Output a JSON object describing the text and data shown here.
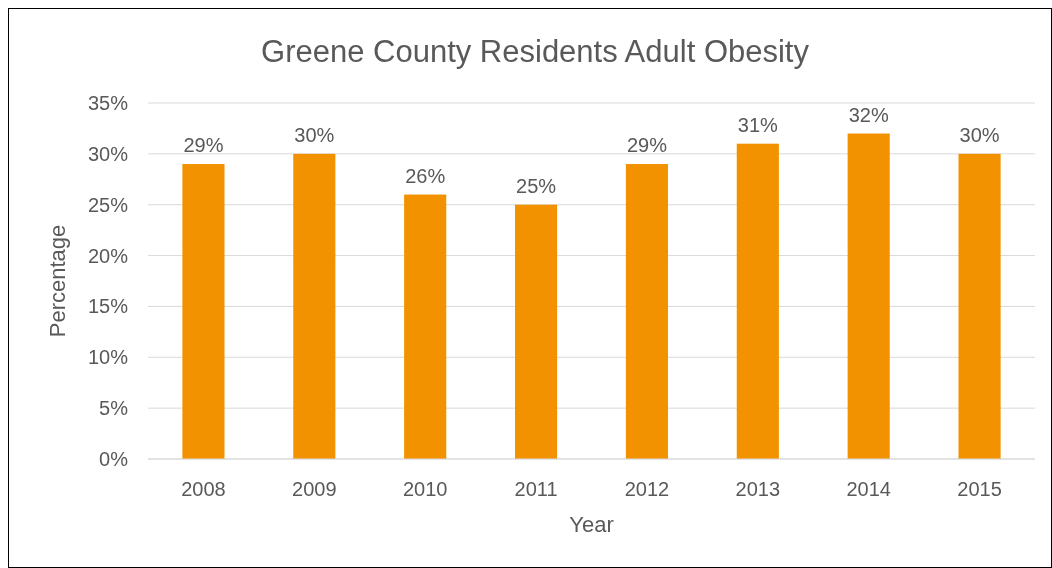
{
  "chart_data": {
    "type": "bar",
    "title": "Greene County Residents Adult Obesity",
    "xlabel": "Year",
    "ylabel": "Percentage",
    "categories": [
      "2008",
      "2009",
      "2010",
      "2011",
      "2012",
      "2013",
      "2014",
      "2015"
    ],
    "values": [
      29,
      30,
      26,
      25,
      29,
      31,
      32,
      30
    ],
    "value_labels": [
      "29%",
      "30%",
      "26%",
      "25%",
      "29%",
      "31%",
      "32%",
      "30%"
    ],
    "color": "#f39200",
    "ylim": [
      0,
      35
    ],
    "yticks": [
      {
        "value": 0,
        "label": "0%"
      },
      {
        "value": 5,
        "label": "5%"
      },
      {
        "value": 10,
        "label": "10%"
      },
      {
        "value": 15,
        "label": "15%"
      },
      {
        "value": 20,
        "label": "20%"
      },
      {
        "value": 25,
        "label": "25%"
      },
      {
        "value": 30,
        "label": "30%"
      },
      {
        "value": 35,
        "label": "35%"
      }
    ],
    "grid": "y"
  }
}
